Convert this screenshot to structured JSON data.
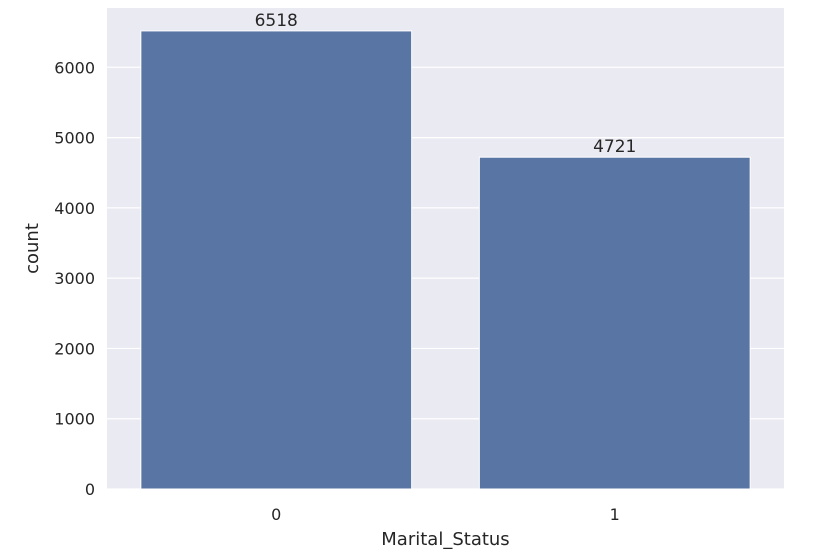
{
  "chart_data": {
    "type": "bar",
    "categories": [
      "0",
      "1"
    ],
    "values": [
      6518,
      4721
    ],
    "data_labels": [
      "6518",
      "4721"
    ],
    "title": "",
    "xlabel": "Marital_Status",
    "ylabel": "count",
    "ylim": [
      0,
      6844
    ],
    "yticks": [
      0,
      1000,
      2000,
      3000,
      4000,
      5000,
      6000
    ],
    "ytick_labels": [
      "0",
      "1000",
      "2000",
      "3000",
      "4000",
      "5000",
      "6000"
    ],
    "grid": true,
    "legend": "none",
    "colors": {
      "bar": "#5875a4",
      "plot_background": "#eaeaf2",
      "grid": "#ffffff",
      "text": "#262626"
    }
  }
}
